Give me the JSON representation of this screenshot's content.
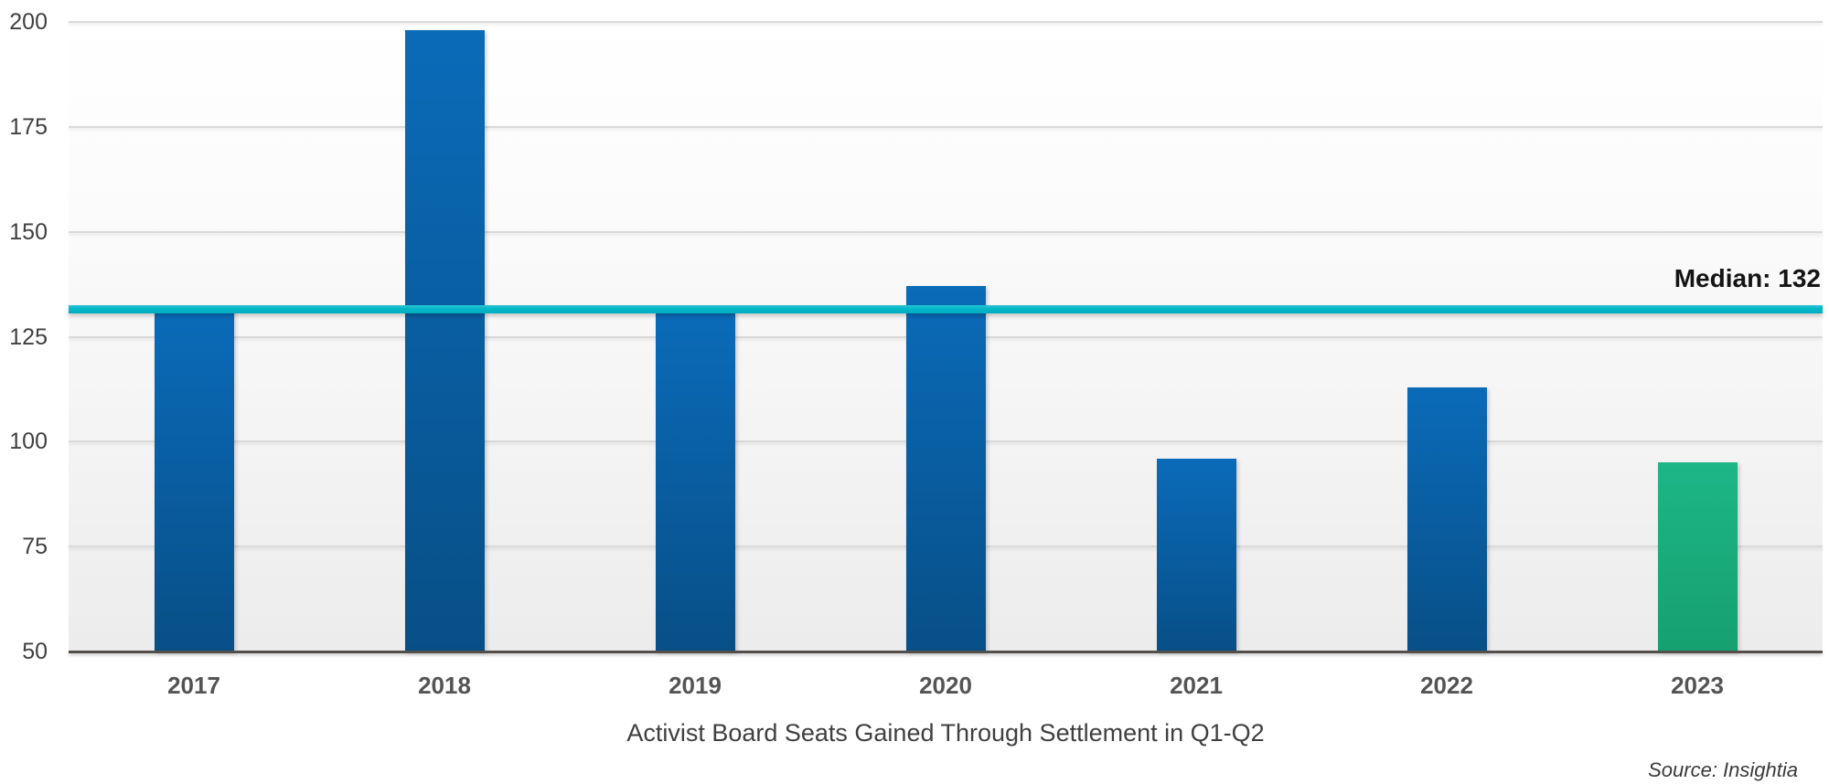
{
  "chart_data": {
    "type": "bar",
    "title": "Activist Board Seats Gained Through Settlement in Q1-Q2",
    "source": "Source: Insightia",
    "categories": [
      "2017",
      "2018",
      "2019",
      "2020",
      "2021",
      "2022",
      "2023"
    ],
    "values": [
      132,
      198,
      131,
      137,
      96,
      113,
      95
    ],
    "ylim": [
      50,
      200
    ],
    "yticks": [
      50,
      75,
      100,
      125,
      150,
      175,
      200
    ],
    "grid": "horizontal",
    "legend": "none",
    "median": {
      "label": "Median: 132",
      "value": 132
    },
    "highlight_index": 6,
    "colors": {
      "bar_blue_top": "#0a6bb9",
      "bar_blue_bottom": "#084f87",
      "bar_green_top": "#1db686",
      "bar_green_bottom": "#16a070",
      "median_line": "#00b7c8",
      "gridline": "#d9d9d9",
      "axis_line": "#53504b",
      "tick_text": "#3f3f3f",
      "year_text": "#545454",
      "title_text": "#3f3f3f",
      "median_text": "#141414",
      "source_text": "#3a3a3a"
    }
  }
}
